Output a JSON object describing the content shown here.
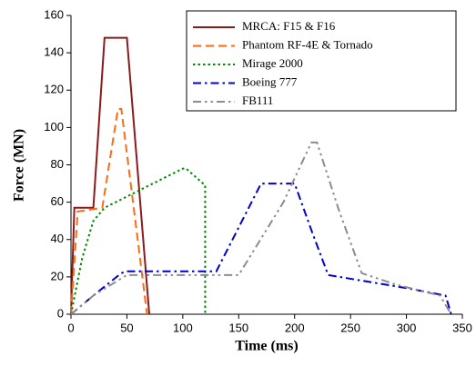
{
  "chart_data": {
    "type": "line",
    "xlabel": "Time (ms)",
    "ylabel": "Force (MN)",
    "xlim": [
      0,
      350
    ],
    "xticks": [
      0,
      50,
      100,
      150,
      200,
      250,
      300,
      350
    ],
    "ylim": [
      0,
      160
    ],
    "yticks": [
      0,
      20,
      40,
      60,
      80,
      100,
      120,
      140,
      160
    ],
    "grid": false,
    "legend": "upper right",
    "series": [
      {
        "name": "MRCA: F15 & F16",
        "color": "#8b1a1a",
        "dash": "solid",
        "x": [
          0,
          3,
          20,
          30,
          50,
          70
        ],
        "values": [
          0,
          57,
          57,
          148,
          148,
          0
        ]
      },
      {
        "name": "Phantom RF-4E & Tornado",
        "color": "#ff6a13",
        "dash": "dashed",
        "x": [
          0,
          6,
          28,
          42,
          45,
          68
        ],
        "values": [
          0,
          55,
          57,
          110,
          110,
          0
        ]
      },
      {
        "name": "Mirage 2000",
        "color": "#008a00",
        "dash": "dotted",
        "x": [
          0,
          10,
          20,
          30,
          50,
          100,
          103,
          120,
          120
        ],
        "values": [
          0,
          30,
          50,
          57,
          63,
          78,
          78,
          69,
          0
        ]
      },
      {
        "name": "Boeing 777",
        "color": "#0000cc",
        "dash": "dashdot",
        "x": [
          0,
          20,
          45,
          50,
          130,
          170,
          200,
          215,
          230,
          260,
          300,
          335,
          340
        ],
        "values": [
          0,
          10,
          22,
          23,
          23,
          70,
          70,
          45,
          21,
          18,
          14,
          10,
          0
        ]
      },
      {
        "name": "FB111",
        "color": "#8c8c8c",
        "dash": "dashdotdot",
        "x": [
          0,
          20,
          50,
          150,
          190,
          215,
          220,
          240,
          260,
          290,
          330,
          340
        ],
        "values": [
          0,
          10,
          21,
          21,
          60,
          92,
          92,
          55,
          22,
          16,
          10,
          0
        ]
      }
    ]
  }
}
